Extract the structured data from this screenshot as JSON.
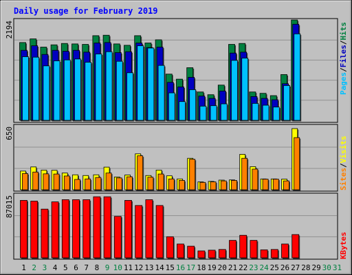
{
  "chart_data": {
    "type": "bar",
    "title": "Daily usage for February 2019",
    "days": [
      "1",
      "2",
      "3",
      "4",
      "5",
      "6",
      "7",
      "8",
      "9",
      "10",
      "11",
      "12",
      "13",
      "14",
      "15",
      "16",
      "17",
      "18",
      "19",
      "20",
      "21",
      "22",
      "23",
      "24",
      "25",
      "26",
      "27",
      "28",
      "29",
      "30",
      "31"
    ],
    "weekend_days": [
      "2",
      "3",
      "9",
      "10",
      "16",
      "17",
      "23",
      "24",
      "30",
      "31"
    ],
    "colors": {
      "background": "#c0c0c0",
      "grid": "#909090",
      "hits": "#008040",
      "files": "#0000c0",
      "pages": "#00c0ff",
      "visits": "#ffff00",
      "sites": "#ff8000",
      "kbytes": "#ff0000",
      "weekday_label": "#000000",
      "weekend_label": "#008040",
      "title": "#0000ff"
    },
    "top_panel": {
      "ymax_label": "2194",
      "ymax": 2194,
      "legend": [
        "Pages",
        "/",
        "Files",
        "/",
        "Hits"
      ],
      "hits": [
        1700,
        1780,
        1600,
        1650,
        1680,
        1670,
        1660,
        1850,
        1860,
        1670,
        1640,
        1850,
        1690,
        1760,
        1010,
        900,
        1150,
        620,
        560,
        770,
        1660,
        1680,
        620,
        590,
        540,
        1000,
        2194,
        0,
        0,
        0,
        0
      ],
      "files": [
        1530,
        1630,
        1440,
        1530,
        1510,
        1530,
        1490,
        1690,
        1700,
        1480,
        1500,
        1690,
        1590,
        1600,
        830,
        730,
        940,
        530,
        480,
        640,
        1470,
        1490,
        520,
        480,
        450,
        800,
        2100,
        0,
        0,
        0,
        0
      ],
      "pages": [
        1390,
        1380,
        1190,
        1300,
        1320,
        1340,
        1270,
        1450,
        1500,
        1290,
        1040,
        1630,
        1580,
        1200,
        600,
        410,
        670,
        310,
        320,
        360,
        1310,
        1360,
        370,
        330,
        290,
        760,
        1890,
        0,
        0,
        0,
        0
      ]
    },
    "middle_panel": {
      "ymax_label": "650",
      "ymax": 650,
      "legend": [
        "Sites",
        "/",
        "Visits"
      ],
      "visits": [
        190,
        232,
        200,
        198,
        170,
        152,
        145,
        152,
        230,
        130,
        150,
        365,
        145,
        200,
        142,
        110,
        320,
        80,
        85,
        98,
        100,
        360,
        235,
        110,
        110,
        108,
        622,
        0,
        0,
        0,
        0
      ],
      "sites": [
        165,
        180,
        162,
        160,
        140,
        105,
        110,
        125,
        170,
        120,
        132,
        345,
        128,
        160,
        110,
        95,
        310,
        75,
        80,
        90,
        95,
        320,
        210,
        108,
        108,
        90,
        530,
        0,
        0,
        0,
        0
      ]
    },
    "bottom_panel": {
      "ymax_label": "87015",
      "ymax": 87015,
      "legend": [
        "KBytes"
      ],
      "kbytes": [
        79000,
        78000,
        67000,
        77000,
        80000,
        80000,
        80000,
        84000,
        84000,
        57000,
        79000,
        72000,
        80000,
        72000,
        29000,
        19000,
        16000,
        9500,
        10500,
        11500,
        24000,
        31000,
        24000,
        11000,
        11500,
        19000,
        32000,
        0,
        0,
        0,
        0
      ]
    }
  }
}
